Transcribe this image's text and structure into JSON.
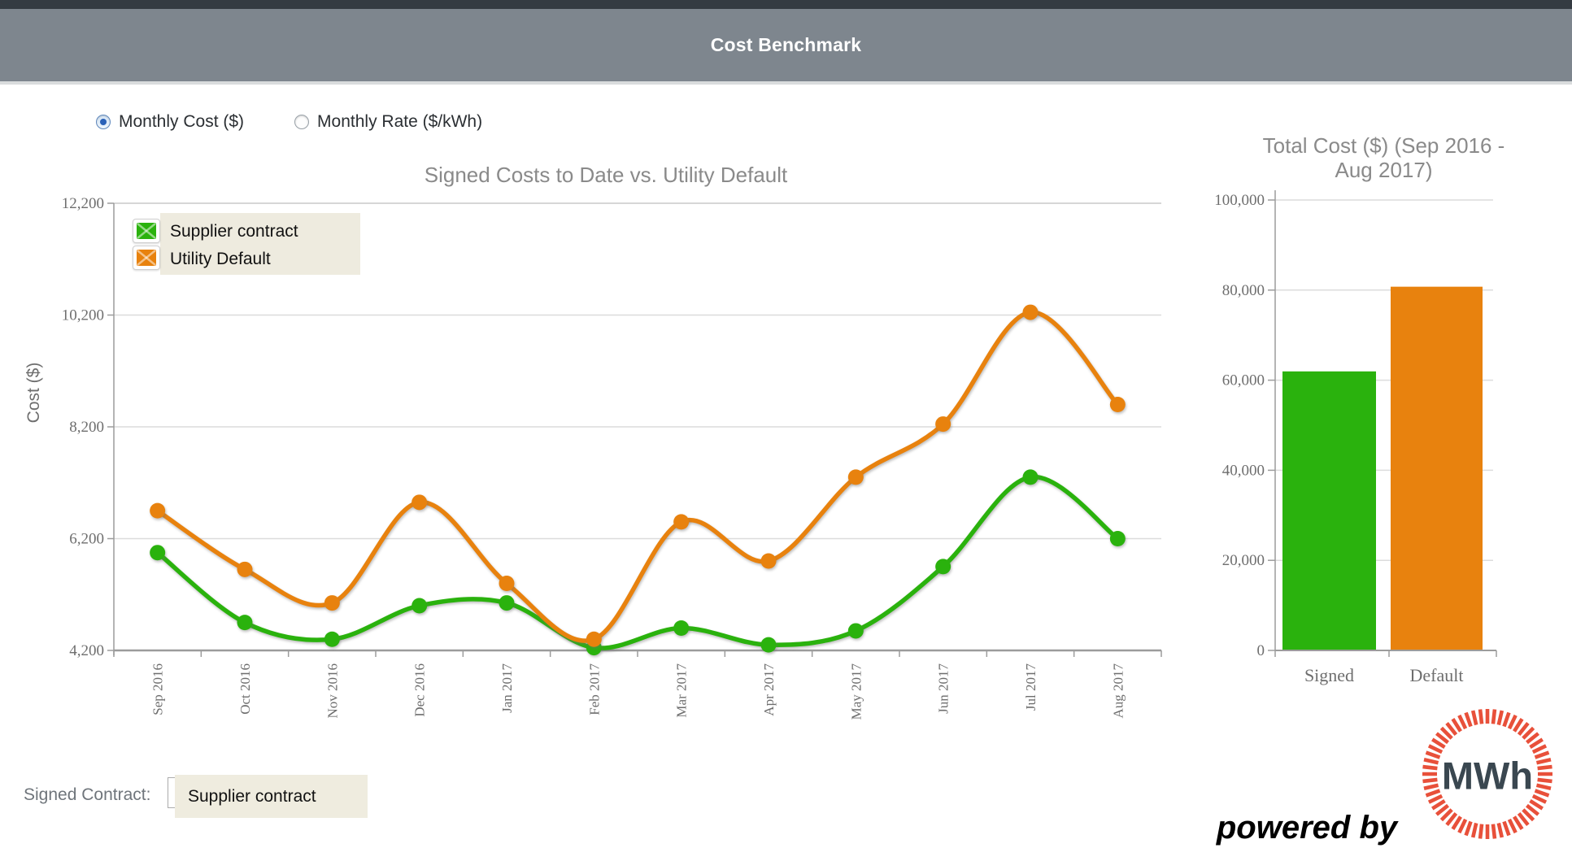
{
  "header": {
    "title": "Cost Benchmark"
  },
  "controls": {
    "radio_options": [
      {
        "label": "Monthly Cost ($)",
        "selected": true
      },
      {
        "label": "Monthly Rate ($/kWh)",
        "selected": false
      }
    ]
  },
  "colors": {
    "supplier_green": "#2ab20d",
    "utility_orange": "#e8820e",
    "header_top_strip": "#343b42",
    "header_bar": "#7e868e",
    "legend_bg": "#eeebdf",
    "title_gray": "#8a8a8a",
    "tick_gray": "#6e6e6e",
    "gridline": "#dcdcdc",
    "axis_line": "#9c9c9c",
    "logo_ring_red": "#e8503a",
    "logo_text_slate": "#3a4750"
  },
  "chart_data": [
    {
      "type": "line",
      "title": "Signed Costs to Date vs. Utility Default",
      "xlabel": "",
      "ylabel": "Cost ($)",
      "categories": [
        "Sep 2016",
        "Oct 2016",
        "Nov 2016",
        "Dec 2016",
        "Jan 2017",
        "Feb 2017",
        "Mar 2017",
        "Apr 2017",
        "May 2017",
        "Jun 2017",
        "Jul 2017",
        "Aug 2017"
      ],
      "series": [
        {
          "name": "Supplier contract",
          "color": "#2ab20d",
          "values": [
            5950,
            4700,
            4400,
            5000,
            5050,
            4250,
            4600,
            4300,
            4550,
            5700,
            7300,
            6200
          ]
        },
        {
          "name": "Utility Default",
          "color": "#e8820e",
          "values": [
            6700,
            5650,
            5050,
            6850,
            5400,
            4400,
            6500,
            5800,
            7300,
            8250,
            10250,
            8600
          ]
        }
      ],
      "ylim": [
        4200,
        12200
      ],
      "y_interval": 2000,
      "y_tick_labels": [
        "12,200",
        "10,200",
        "8,200",
        "6,200",
        "4,200"
      ],
      "grid": true,
      "x_labels_rotated": true,
      "legend_position": "top-left-inside",
      "curve": "smooth-spline-with-markers"
    },
    {
      "type": "bar",
      "title": "Total Cost ($) (Sep 2016 - Aug 2017)",
      "title_lines": [
        "Total Cost ($) (Sep 2016 -",
        "Aug 2017)"
      ],
      "categories": [
        "Signed",
        "Default"
      ],
      "values": [
        61950,
        80750
      ],
      "bar_colors": [
        "#2ab20d",
        "#e8820e"
      ],
      "ylim": [
        0,
        100000
      ],
      "y_interval": 20000,
      "y_tick_labels": [
        "100,000",
        "80,000",
        "60,000",
        "40,000",
        "20,000",
        "0"
      ],
      "grid": true
    }
  ],
  "footer": {
    "signed_contract_label": "Signed Contract:",
    "signed_contract_value": "Supplier contract",
    "powered_by": "powered by",
    "logo_text": "MWh"
  }
}
